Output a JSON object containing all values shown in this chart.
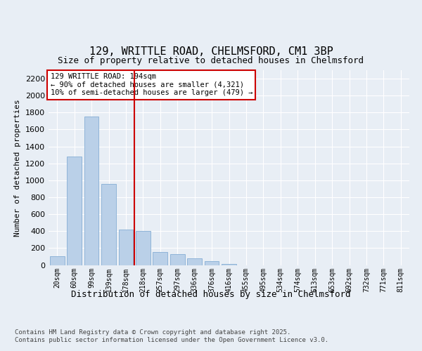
{
  "title_line1": "129, WRITTLE ROAD, CHELMSFORD, CM1 3BP",
  "title_line2": "Size of property relative to detached houses in Chelmsford",
  "xlabel": "Distribution of detached houses by size in Chelmsford",
  "ylabel": "Number of detached properties",
  "footer_line1": "Contains HM Land Registry data © Crown copyright and database right 2025.",
  "footer_line2": "Contains public sector information licensed under the Open Government Licence v3.0.",
  "annotation_line1": "129 WRITTLE ROAD: 194sqm",
  "annotation_line2": "← 90% of detached houses are smaller (4,321)",
  "annotation_line3": "10% of semi-detached houses are larger (479) →",
  "bar_labels": [
    "20sqm",
    "60sqm",
    "99sqm",
    "139sqm",
    "178sqm",
    "218sqm",
    "257sqm",
    "297sqm",
    "336sqm",
    "376sqm",
    "416sqm",
    "455sqm",
    "495sqm",
    "534sqm",
    "574sqm",
    "613sqm",
    "653sqm",
    "692sqm",
    "732sqm",
    "771sqm",
    "811sqm"
  ],
  "bar_values": [
    100,
    1280,
    1750,
    960,
    420,
    400,
    155,
    125,
    75,
    45,
    10,
    0,
    0,
    0,
    0,
    0,
    0,
    0,
    0,
    0,
    0
  ],
  "bar_color": "#bad0e8",
  "bar_edge_color": "#8fb4d8",
  "vline_x": 4.5,
  "vline_color": "#cc0000",
  "ylim": [
    0,
    2300
  ],
  "yticks": [
    0,
    200,
    400,
    600,
    800,
    1000,
    1200,
    1400,
    1600,
    1800,
    2000,
    2200
  ],
  "bg_color": "#e8eef5",
  "plot_bg_color": "#e8eef5",
  "grid_color": "#ffffff",
  "annotation_box_color": "#cc0000",
  "annotation_box_fill": "#ffffff",
  "title_fontsize": 11,
  "subtitle_fontsize": 9,
  "ylabel_fontsize": 8,
  "xlabel_fontsize": 9,
  "tick_fontsize": 8,
  "xtick_fontsize": 7,
  "footer_fontsize": 6.5,
  "ann_fontsize": 7.5
}
